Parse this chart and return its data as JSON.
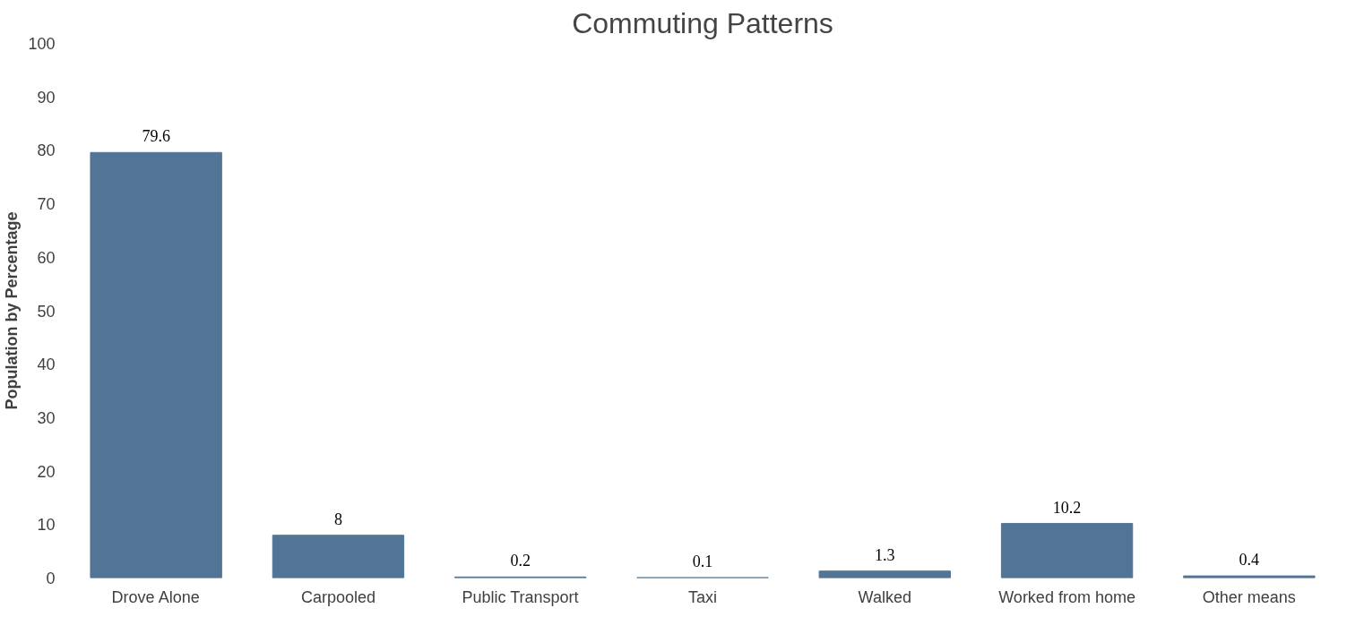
{
  "chart_data": {
    "type": "bar",
    "title": "Commuting Patterns",
    "ylabel": "Population by Percentage",
    "categories": [
      "Drove Alone",
      "Carpooled",
      "Public Transport",
      "Taxi",
      "Walked",
      "Worked from home",
      "Other means"
    ],
    "values": [
      79.6,
      8,
      0.2,
      0.1,
      1.3,
      10.2,
      0.4
    ],
    "color": "#527596",
    "ylim": [
      0,
      100
    ],
    "yticks": [
      0,
      10,
      20,
      30,
      40,
      50,
      60,
      70,
      80,
      90,
      100
    ],
    "grid": false,
    "data_labels": true
  }
}
